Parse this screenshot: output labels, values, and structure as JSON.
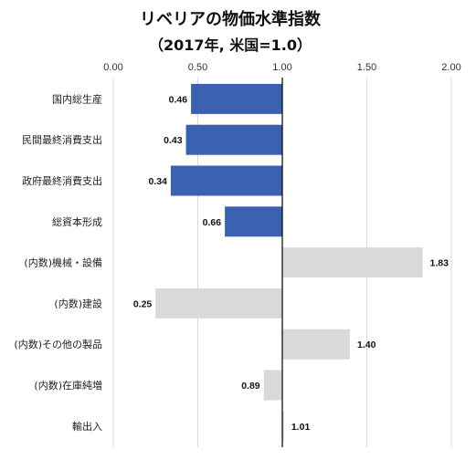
{
  "title": "リベリアの物価水準指数",
  "subtitle": "（2017年, 米国=1.0）",
  "chart_data": {
    "type": "bar",
    "orientation": "horizontal",
    "baseline": 1.0,
    "xlim": [
      0,
      2.0
    ],
    "ticks": [
      "0.00",
      "0.50",
      "1.00",
      "1.50",
      "2.00"
    ],
    "tick_values": [
      0,
      0.5,
      1.0,
      1.5,
      2.0
    ],
    "grid": true,
    "categories": [
      "国内総生産",
      "民間最終消費支出",
      "政府最終消費支出",
      "総資本形成",
      "(内数)機械・設備",
      "(内数)建設",
      "(内数)その他の製品",
      "(内数)在庫純増",
      "輸出入"
    ],
    "values": [
      0.46,
      0.43,
      0.34,
      0.66,
      1.83,
      0.25,
      1.4,
      0.89,
      1.01
    ],
    "value_labels": [
      "0.46",
      "0.43",
      "0.34",
      "0.66",
      "1.83",
      "0.25",
      "1.40",
      "0.89",
      "1.01"
    ],
    "bar_colors": [
      "#3a62b0",
      "#3a62b0",
      "#3a62b0",
      "#3a62b0",
      "#d9d9d9",
      "#d9d9d9",
      "#d9d9d9",
      "#d9d9d9",
      "#d9d9d9"
    ]
  }
}
